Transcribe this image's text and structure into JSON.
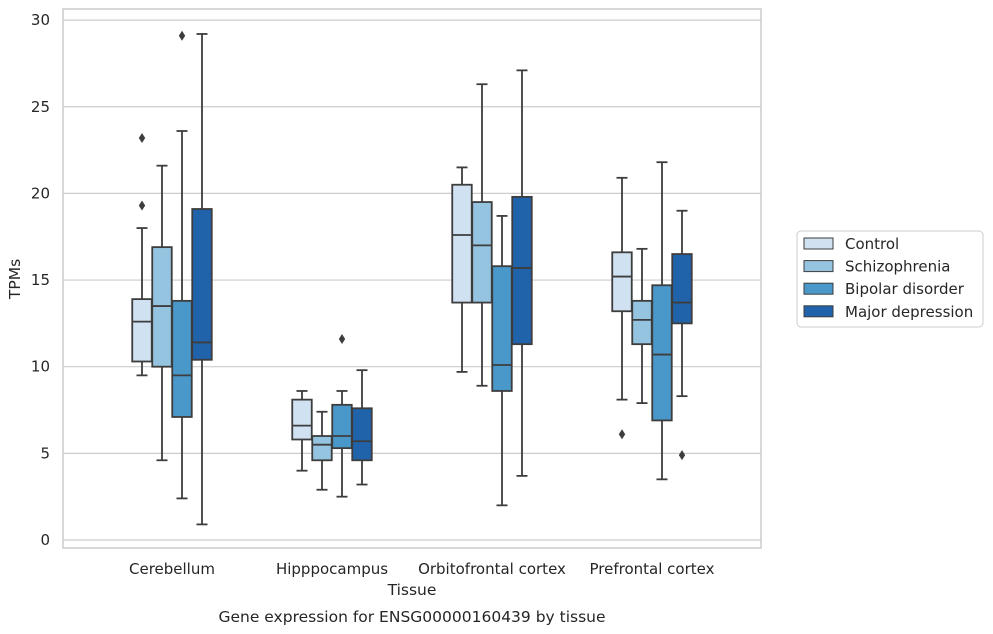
{
  "chart_data": {
    "type": "boxplot",
    "title": "Gene expression for ENSG00000160439 by tissue",
    "xlabel": "Tissue",
    "ylabel": "TPMs",
    "ylim": [
      -0.5,
      30.7
    ],
    "yticks": [
      0,
      5,
      10,
      15,
      20,
      25,
      30
    ],
    "grid": "horizontal",
    "legend_placement": "center-right, outside",
    "categories": [
      "Cerebellum",
      "Hipppocampus",
      "Orbitofrontal cortex",
      "Prefrontal cortex"
    ],
    "series": [
      {
        "name": "Control",
        "color": "#d0e1f2",
        "boxes": [
          {
            "whisker_low": 9.5,
            "q1": 10.3,
            "median": 12.6,
            "q3": 13.9,
            "whisker_high": 18.0,
            "outliers": [
              19.3,
              23.2
            ]
          },
          {
            "whisker_low": 4.0,
            "q1": 5.8,
            "median": 6.6,
            "q3": 8.1,
            "whisker_high": 8.6,
            "outliers": []
          },
          {
            "whisker_low": 9.7,
            "q1": 13.7,
            "median": 17.6,
            "q3": 20.5,
            "whisker_high": 21.5,
            "outliers": []
          },
          {
            "whisker_low": 8.1,
            "q1": 13.2,
            "median": 15.2,
            "q3": 16.6,
            "whisker_high": 20.9,
            "outliers": [
              6.1
            ]
          }
        ]
      },
      {
        "name": "Schizophrenia",
        "color": "#94c4df",
        "boxes": [
          {
            "whisker_low": 4.6,
            "q1": 10.0,
            "median": 13.5,
            "q3": 16.9,
            "whisker_high": 21.6,
            "outliers": []
          },
          {
            "whisker_low": 2.9,
            "q1": 4.6,
            "median": 5.5,
            "q3": 6.0,
            "whisker_high": 7.4,
            "outliers": []
          },
          {
            "whisker_low": 8.9,
            "q1": 13.7,
            "median": 17.0,
            "q3": 19.5,
            "whisker_high": 26.3,
            "outliers": []
          },
          {
            "whisker_low": 7.9,
            "q1": 11.3,
            "median": 12.7,
            "q3": 13.8,
            "whisker_high": 16.8,
            "outliers": []
          }
        ]
      },
      {
        "name": "Bipolar disorder",
        "color": "#4a98c9",
        "boxes": [
          {
            "whisker_low": 2.4,
            "q1": 7.1,
            "median": 9.5,
            "q3": 13.8,
            "whisker_high": 23.6,
            "outliers": [
              29.1
            ]
          },
          {
            "whisker_low": 2.5,
            "q1": 5.3,
            "median": 6.0,
            "q3": 7.8,
            "whisker_high": 8.6,
            "outliers": [
              11.6
            ]
          },
          {
            "whisker_low": 2.0,
            "q1": 8.6,
            "median": 10.1,
            "q3": 15.8,
            "whisker_high": 18.7,
            "outliers": []
          },
          {
            "whisker_low": 3.5,
            "q1": 6.9,
            "median": 10.7,
            "q3": 14.7,
            "whisker_high": 21.8,
            "outliers": []
          }
        ]
      },
      {
        "name": "Major depression",
        "color": "#2163aa",
        "boxes": [
          {
            "whisker_low": 0.9,
            "q1": 10.4,
            "median": 11.4,
            "q3": 19.1,
            "whisker_high": 29.2,
            "outliers": []
          },
          {
            "whisker_low": 3.2,
            "q1": 4.6,
            "median": 5.7,
            "q3": 7.6,
            "whisker_high": 9.8,
            "outliers": []
          },
          {
            "whisker_low": 3.7,
            "q1": 11.3,
            "median": 15.7,
            "q3": 19.8,
            "whisker_high": 27.1,
            "outliers": []
          },
          {
            "whisker_low": 8.3,
            "q1": 12.5,
            "median": 13.7,
            "q3": 16.5,
            "whisker_high": 19.0,
            "outliers": [
              4.9
            ]
          }
        ]
      }
    ]
  }
}
